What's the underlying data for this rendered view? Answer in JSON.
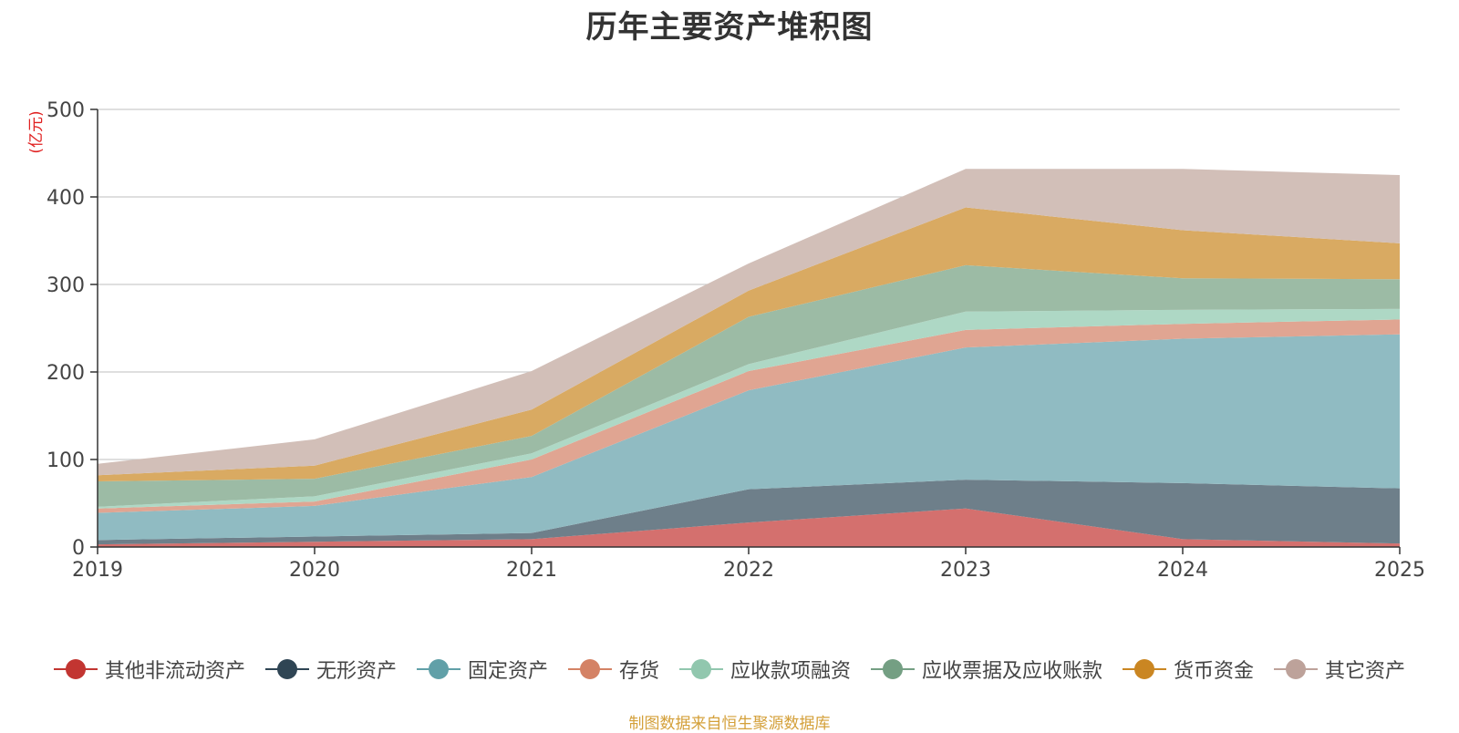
{
  "chart_data": {
    "type": "area",
    "stacked": true,
    "title": "历年主要资产堆积图",
    "ylabel": "(亿元)",
    "xlabel": "",
    "x": [
      "2019",
      "2020",
      "2021",
      "2022",
      "2023",
      "2024",
      "2025"
    ],
    "ylim": [
      0,
      500
    ],
    "yticks": [
      0,
      100,
      200,
      300,
      400,
      500
    ],
    "grid": true,
    "legend_position": "bottom",
    "series": [
      {
        "name": "其他非流动资产",
        "color": "#c23531",
        "fill": "#d4706e",
        "values": [
          3,
          6,
          9,
          28,
          44,
          9,
          4
        ]
      },
      {
        "name": "无形资产",
        "color": "#2f4554",
        "fill": "#6e7f8a",
        "values": [
          5,
          6,
          7,
          38,
          33,
          64,
          63
        ]
      },
      {
        "name": "固定资产",
        "color": "#61a0a8",
        "fill": "#90bbc2",
        "values": [
          31,
          35,
          64,
          113,
          151,
          165,
          176
        ]
      },
      {
        "name": "存货",
        "color": "#d48265",
        "fill": "#e0a592",
        "values": [
          5,
          5,
          20,
          22,
          20,
          17,
          17
        ]
      },
      {
        "name": "应收款项融资",
        "color": "#91c7ae",
        "fill": "#aed8c5",
        "values": [
          2,
          6,
          7,
          8,
          21,
          16,
          12
        ]
      },
      {
        "name": "应收票据及应收账款",
        "color": "#749f83",
        "fill": "#9cbba5",
        "values": [
          29,
          20,
          20,
          54,
          53,
          36,
          34
        ]
      },
      {
        "name": "货币资金",
        "color": "#ca8622",
        "fill": "#d9aa62",
        "values": [
          7,
          15,
          30,
          30,
          66,
          55,
          41
        ]
      },
      {
        "name": "其它资产",
        "color": "#bda29a",
        "fill": "#d2bfb8",
        "values": [
          13,
          30,
          44,
          31,
          44,
          70,
          78
        ]
      }
    ]
  },
  "source_note": "制图数据来自恒生聚源数据库"
}
